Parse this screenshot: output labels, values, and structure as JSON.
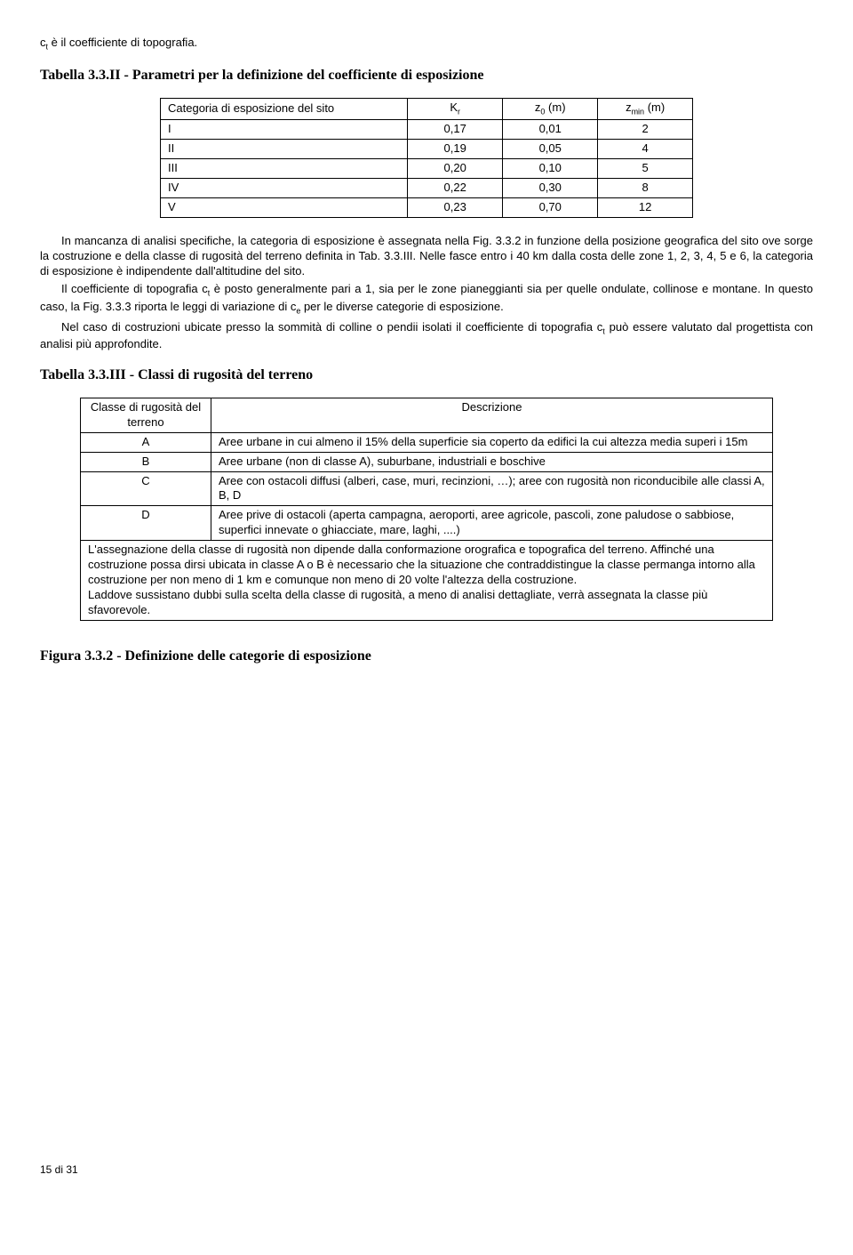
{
  "intro_prefix": "c",
  "intro_sub": "t",
  "intro_rest": " è il coefficiente di topografia.",
  "title1": "Tabella 3.3.II - Parametri per la definizione del coefficiente di esposizione",
  "table1": {
    "headers": {
      "col1": "Categoria di esposizione del sito",
      "col2_pre": "K",
      "col2_sub": "r",
      "col3_pre": "z",
      "col3_sub": "0",
      "col3_unit": " (m)",
      "col4_pre": "z",
      "col4_sub": "min",
      "col4_unit": " (m)"
    },
    "rows": [
      [
        "I",
        "0,17",
        "0,01",
        "2"
      ],
      [
        "II",
        "0,19",
        "0,05",
        "4"
      ],
      [
        "III",
        "0,20",
        "0,10",
        "5"
      ],
      [
        "IV",
        "0,22",
        "0,30",
        "8"
      ],
      [
        "V",
        "0,23",
        "0,70",
        "12"
      ]
    ]
  },
  "para1": "In mancanza di analisi specifiche, la categoria di esposizione è assegnata nella Fig. 3.3.2 in funzione della posizione geografica del sito ove sorge la costruzione e della classe di rugosità del terreno definita in Tab. 3.3.III. Nelle fasce entro i 40 km dalla costa delle zone 1, 2, 3, 4, 5 e 6, la categoria di esposizione è indipendente dall'altitudine del sito.",
  "para2_a": "Il coefficiente di topografia c",
  "para2_a_sub": "t",
  "para2_b": " è posto generalmente pari a 1, sia per le zone pianeggianti sia per quelle ondulate, collinose e montane. In questo caso, la Fig. 3.3.3 riporta le leggi di variazione di c",
  "para2_b_sub": "e",
  "para2_c": " per le diverse categorie di esposizione.",
  "para3_a": "Nel caso di costruzioni ubicate presso la sommità di colline o pendii isolati il coefficiente di topografia c",
  "para3_a_sub": "t",
  "para3_b": " può essere valutato dal progettista con analisi più approfondite.",
  "title2": "Tabella 3.3.III - Classi di rugosità del terreno",
  "table2": {
    "header_col1_l1": "Classe di rugosità del",
    "header_col1_l2": "terreno",
    "header_col2": "Descrizione",
    "rows": [
      [
        "A",
        "Aree urbane in cui almeno il 15% della superficie sia coperto da edifici la cui altezza media superi i 15m"
      ],
      [
        "B",
        "Aree urbane (non di classe A), suburbane, industriali e boschive"
      ],
      [
        "C",
        "Aree con ostacoli diffusi (alberi, case, muri, recinzioni, …); aree con rugosità non riconducibile alle classi A, B, D"
      ],
      [
        "D",
        "Aree prive di ostacoli (aperta campagna, aeroporti, aree agricole, pascoli, zone paludose o sabbiose, superfici innevate o ghiacciate, mare, laghi, ....)"
      ]
    ],
    "note": "L'assegnazione della classe di rugosità non dipende dalla conformazione orografica e topografica del terreno. Affinché una costruzione possa dirsi ubicata in classe A o B è necessario che la situazione che contraddistingue la classe permanga intorno alla costruzione per non meno di 1 km e comunque non meno di 20 volte l'altezza della costruzione.\nLaddove sussistano dubbi sulla scelta della classe di rugosità, a meno di analisi dettagliate, verrà assegnata la classe più sfavorevole."
  },
  "title3": "Figura 3.3.2 - Definizione delle categorie di esposizione",
  "footer": "15 di 31"
}
